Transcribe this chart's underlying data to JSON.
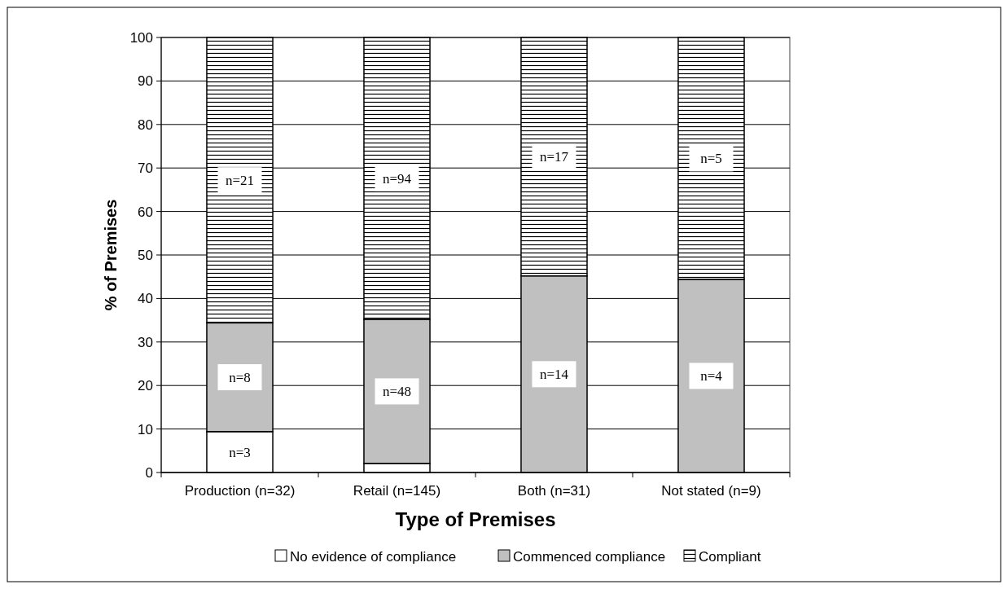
{
  "chart_data": {
    "type": "bar",
    "stacked": true,
    "xlabel": "Type of Premises",
    "ylabel": "% of Premises",
    "categories": [
      "Production (n=32)",
      "Retail (n=145)",
      "Both (n=31)",
      "Not stated (n=9)"
    ],
    "series": [
      {
        "name": "No evidence of compliance",
        "color": "#ffffff",
        "values": [
          9.4,
          2.1,
          0,
          0
        ]
      },
      {
        "name": "Commenced compliance",
        "color": "#c0c0c0",
        "values": [
          25,
          33.1,
          45.2,
          44.4
        ]
      },
      {
        "name": "Compliant",
        "color": "#000000",
        "values": [
          65.6,
          64.8,
          54.8,
          55.6
        ]
      }
    ],
    "annotations": [
      "n=3",
      "n=8",
      "n=48",
      "n=14",
      "n=4",
      "n=21",
      "n=94",
      "n=17",
      "n=5"
    ],
    "ylim": [
      0,
      100
    ],
    "yticks": [
      0,
      10,
      20,
      30,
      40,
      50,
      60,
      70,
      80,
      90,
      100
    ],
    "grid": "y",
    "legend": "bottom"
  }
}
